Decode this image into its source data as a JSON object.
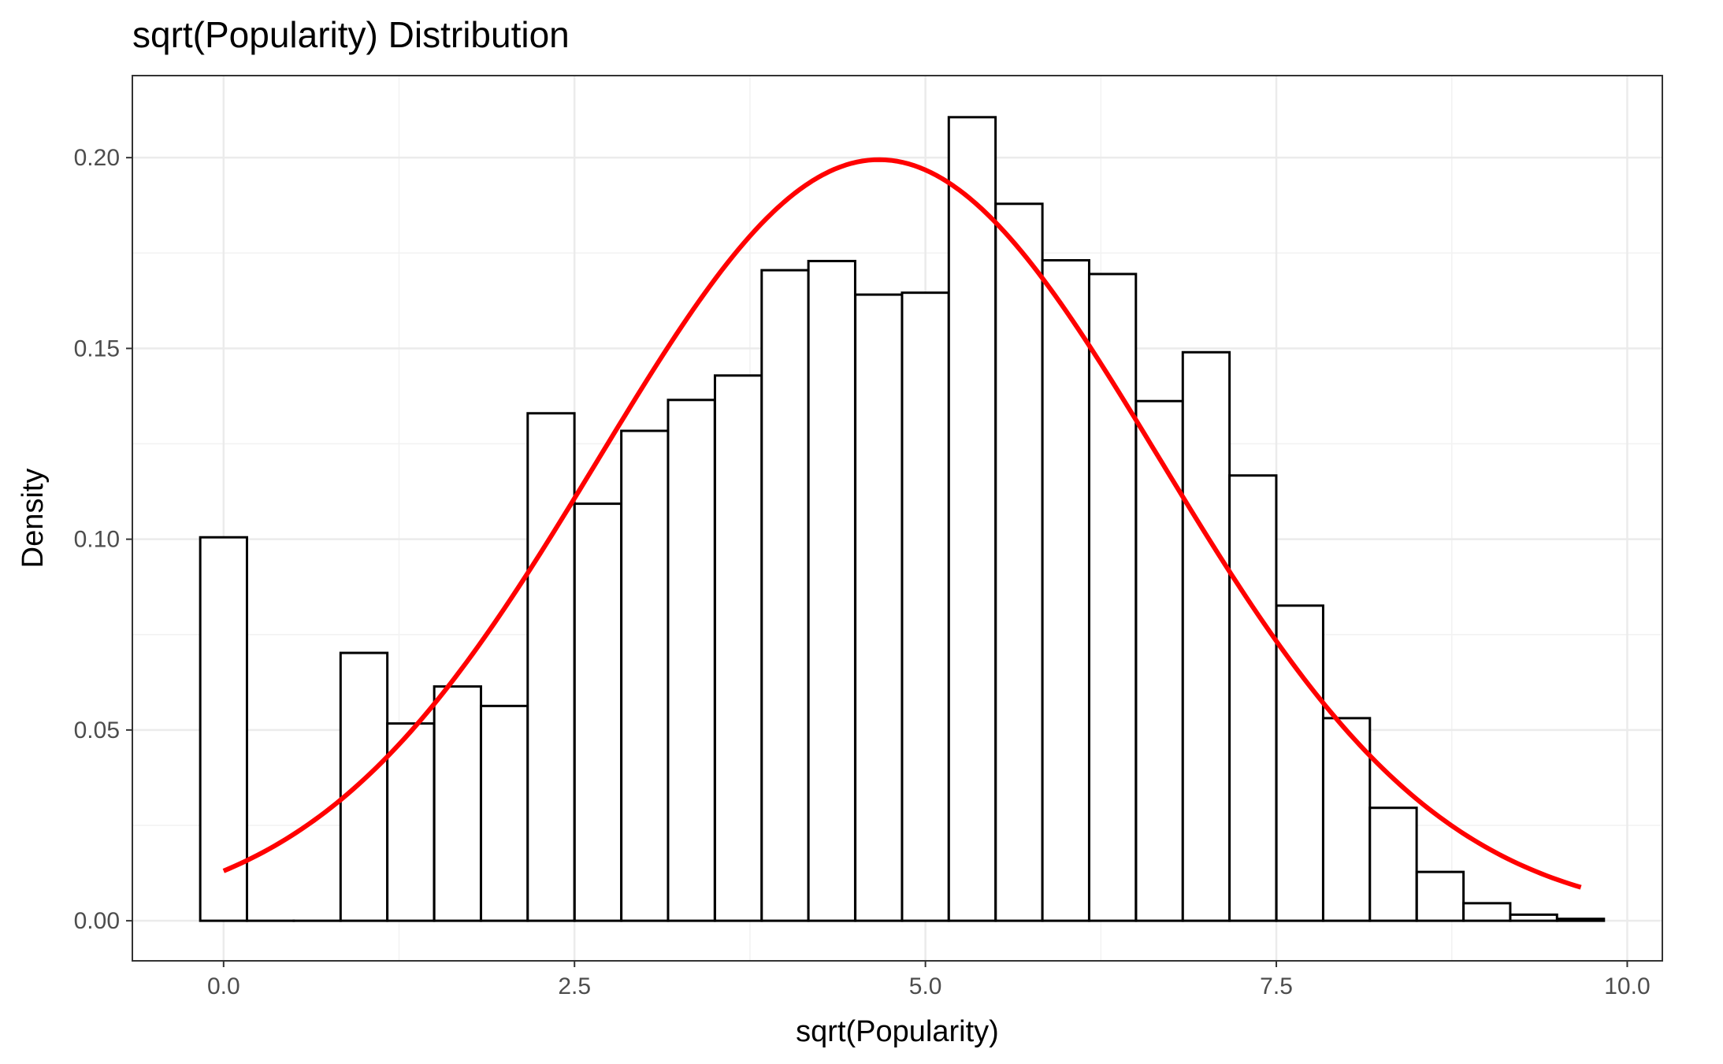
{
  "chart_data": {
    "type": "bar",
    "title": "sqrt(Popularity) Distribution",
    "xlabel": "sqrt(Popularity)",
    "ylabel": "Density",
    "xlim": [
      -0.65,
      10.25
    ],
    "ylim": [
      -0.0105,
      0.2215
    ],
    "x_ticks": [
      {
        "value": 0.0,
        "label": "0.0"
      },
      {
        "value": 2.5,
        "label": "2.5"
      },
      {
        "value": 5.0,
        "label": "5.0"
      },
      {
        "value": 7.5,
        "label": "7.5"
      },
      {
        "value": 10.0,
        "label": "10.0"
      }
    ],
    "y_ticks": [
      {
        "value": 0.0,
        "label": "0.00"
      },
      {
        "value": 0.05,
        "label": "0.05"
      },
      {
        "value": 0.1,
        "label": "0.10"
      },
      {
        "value": 0.15,
        "label": "0.15"
      },
      {
        "value": 0.2,
        "label": "0.20"
      }
    ],
    "grid": true,
    "histogram": {
      "bin_width": 0.333,
      "bins": [
        {
          "center": 0.0,
          "density": 0.1005
        },
        {
          "center": 0.333,
          "density": 0.0
        },
        {
          "center": 0.667,
          "density": 0.0
        },
        {
          "center": 1.0,
          "density": 0.0702
        },
        {
          "center": 1.333,
          "density": 0.0517
        },
        {
          "center": 1.667,
          "density": 0.0614
        },
        {
          "center": 2.0,
          "density": 0.0563
        },
        {
          "center": 2.333,
          "density": 0.133
        },
        {
          "center": 2.667,
          "density": 0.1093
        },
        {
          "center": 3.0,
          "density": 0.1284
        },
        {
          "center": 3.333,
          "density": 0.1365
        },
        {
          "center": 3.667,
          "density": 0.1429
        },
        {
          "center": 4.0,
          "density": 0.1705
        },
        {
          "center": 4.333,
          "density": 0.1729
        },
        {
          "center": 4.667,
          "density": 0.1641
        },
        {
          "center": 5.0,
          "density": 0.1646
        },
        {
          "center": 5.333,
          "density": 0.2106
        },
        {
          "center": 5.667,
          "density": 0.1879
        },
        {
          "center": 6.0,
          "density": 0.1731
        },
        {
          "center": 6.333,
          "density": 0.1695
        },
        {
          "center": 6.667,
          "density": 0.1362
        },
        {
          "center": 7.0,
          "density": 0.149
        },
        {
          "center": 7.333,
          "density": 0.1167
        },
        {
          "center": 7.667,
          "density": 0.0826
        },
        {
          "center": 8.0,
          "density": 0.0531
        },
        {
          "center": 8.333,
          "density": 0.0296
        },
        {
          "center": 8.667,
          "density": 0.0128
        },
        {
          "center": 9.0,
          "density": 0.0046
        },
        {
          "center": 9.333,
          "density": 0.0016
        },
        {
          "center": 9.667,
          "density": 0.0005
        }
      ]
    },
    "density_curve": {
      "type": "line",
      "distribution": "normal",
      "mean": 4.67,
      "sd": 2.0,
      "x_range": [
        0.0,
        9.67
      ]
    },
    "colors": {
      "bar_fill": "#ffffff",
      "bar_stroke": "#000000",
      "curve": "#ff0000",
      "grid_major": "#ebebeb",
      "grid_minor": "#f2f2f2",
      "panel_border": "#333333",
      "tick_text": "#4d4d4d"
    }
  }
}
